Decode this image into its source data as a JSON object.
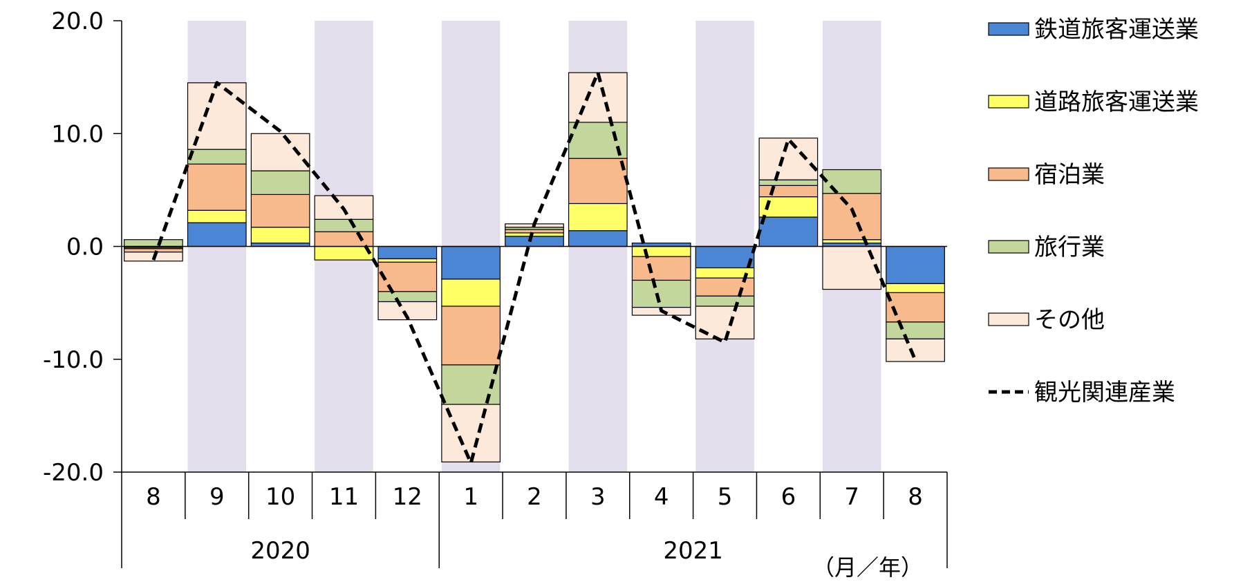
{
  "chart_data": {
    "type": "bar",
    "stacked": true,
    "categories": [
      "8",
      "9",
      "10",
      "11",
      "12",
      "1",
      "2",
      "3",
      "4",
      "5",
      "6",
      "7",
      "8"
    ],
    "year_groups": [
      {
        "label": "2020",
        "start": 0,
        "end": 4
      },
      {
        "label": "2021",
        "start": 5,
        "end": 12
      }
    ],
    "shaded_categories": [
      1,
      3,
      5,
      7,
      9,
      11
    ],
    "ylim": [
      -20,
      20
    ],
    "yticks": [
      20,
      10,
      0,
      -10,
      -20
    ],
    "ytick_labels": [
      "20.0",
      "10.0",
      "0.0",
      "-10.0",
      "-20.0"
    ],
    "unit_label": "（月／年）",
    "legend_position": "right",
    "series": [
      {
        "name": "鉄道旅客運送業",
        "color": "#4a86d4",
        "values": [
          -0.1,
          2.1,
          0.3,
          0.0,
          -1.1,
          -2.9,
          0.9,
          1.4,
          0.3,
          -1.9,
          2.6,
          0.3,
          -3.3
        ]
      },
      {
        "name": "道路旅客運送業",
        "color": "#ffff66",
        "values": [
          -0.1,
          1.1,
          1.4,
          -1.2,
          -0.3,
          -2.4,
          0.3,
          2.4,
          -0.9,
          -0.9,
          1.8,
          0.3,
          -0.8
        ]
      },
      {
        "name": "宿泊業",
        "color": "#f8b98c",
        "values": [
          -0.3,
          4.1,
          2.9,
          1.3,
          -2.6,
          -5.2,
          0.3,
          4.0,
          -2.1,
          -1.6,
          1.0,
          4.1,
          -2.6
        ]
      },
      {
        "name": "旅行業",
        "color": "#c3d69b",
        "values": [
          0.6,
          1.3,
          2.1,
          1.1,
          -0.9,
          -3.5,
          0.2,
          3.2,
          -2.4,
          -0.9,
          0.5,
          2.1,
          -1.5
        ]
      },
      {
        "name": "その他",
        "color": "#fde9d9",
        "values": [
          -0.8,
          5.9,
          3.3,
          2.1,
          -1.6,
          -5.1,
          0.3,
          4.4,
          -0.7,
          -2.9,
          3.7,
          -3.8,
          -2.0
        ]
      }
    ],
    "line": {
      "name": "観光関連産業",
      "color": "#000000",
      "values": [
        -1.2,
        14.5,
        10.2,
        3.3,
        -6.3,
        -19.2,
        2.0,
        15.4,
        -5.7,
        -8.5,
        9.5,
        3.3,
        -10.1
      ]
    }
  }
}
